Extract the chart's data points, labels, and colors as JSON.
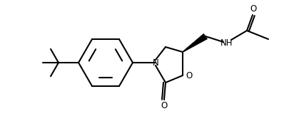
{
  "line_color": "#000000",
  "line_width": 1.5,
  "bg_color": "#ffffff",
  "fig_width": 4.05,
  "fig_height": 1.77,
  "dpi": 100,
  "label_N": "N",
  "label_O_ring": "O",
  "label_O_carbonyl": "O",
  "label_O_acetyl": "O",
  "label_NH": "NH",
  "font_size": 8.5
}
